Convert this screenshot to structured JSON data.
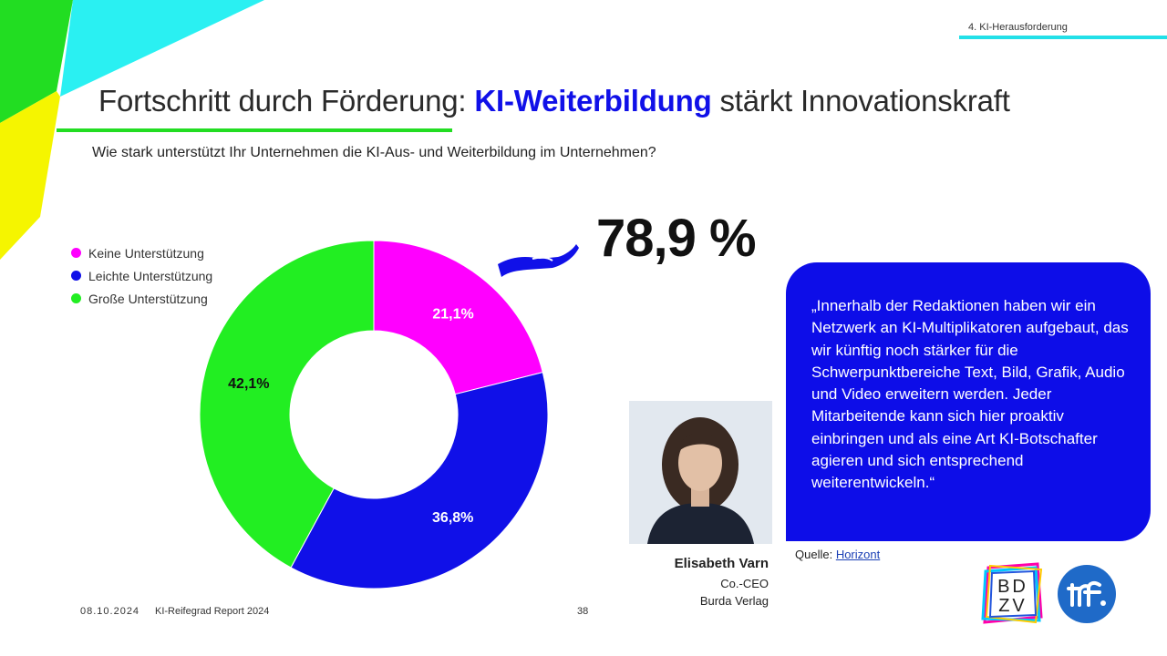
{
  "section": {
    "label": "4. KI-Herausforderung"
  },
  "title": {
    "prefix": "Fortschritt durch Förderung: ",
    "highlight": "KI-Weiterbildung",
    "suffix": " stärkt Innovationskraft"
  },
  "question": "Wie stark unterstützt Ihr Unternehmen die KI-Aus- und Weiterbildung im Unternehmen?",
  "chart_data": {
    "type": "donut",
    "title": "",
    "categories": [
      "Keine Unterstützung",
      "Leichte Unterstützung",
      "Große Unterstützung"
    ],
    "values": [
      21.1,
      36.8,
      42.1
    ],
    "labels": [
      "21,1%",
      "36,8%",
      "42,1%"
    ],
    "colors": [
      "#ff00ff",
      "#1010e8",
      "#22ee22"
    ],
    "legend_position": "top-left"
  },
  "highlight_stat": "78,9 %",
  "quote": {
    "text": "„Innerhalb der Redaktionen haben wir ein Netzwerk an KI-Multiplikatoren aufgebaut, das wir künftig noch stärker für die Schwerpunktbereiche Text, Bild, Grafik, Audio und Video erweitern werden. Jeder Mitarbeitende kann sich hier proaktiv einbringen und als eine Art KI-Botschafter agieren und sich entsprechend weiterentwickeln.“",
    "box_color": "#0d0de8"
  },
  "source": {
    "label": "Quelle: ",
    "link_text": "Horizont"
  },
  "person": {
    "name": "Elisabeth Varn",
    "role": "Co.-CEO",
    "company": "Burda Verlag"
  },
  "footer": {
    "date": "08.10.2024",
    "report": "KI-Reifegrad Report 2024",
    "page": "38"
  },
  "logos": {
    "bdzv": "BDZV",
    "ttf": "ttf"
  }
}
